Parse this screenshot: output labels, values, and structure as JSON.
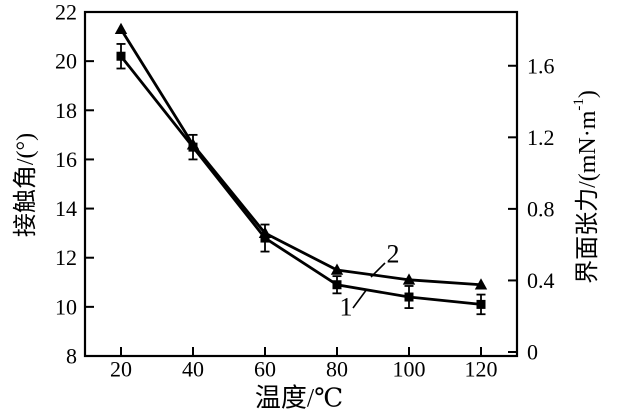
{
  "colors": {
    "foreground": "#000000",
    "background": "#ffffff"
  },
  "chart_data": {
    "type": "line",
    "title": "",
    "xlabel": "温度/℃",
    "ylabel_left": "接触角/(°)",
    "ylabel_right": "界面张力/(mN·m⁻¹)",
    "x": [
      20,
      40,
      60,
      80,
      100,
      120
    ],
    "xlim": [
      10,
      130
    ],
    "ylim_left": [
      8,
      22
    ],
    "ylim_right": [
      0,
      1.88
    ],
    "x_ticks": [
      20,
      40,
      60,
      80,
      100,
      120
    ],
    "y_ticks_left": [
      8,
      10,
      12,
      14,
      16,
      18,
      20,
      22
    ],
    "y_ticks_right": [
      0,
      0.4,
      0.8,
      1.2,
      1.6
    ],
    "grid": false,
    "legend_style": "inline numeric labels with leader lines",
    "series": [
      {
        "name": "1",
        "marker": "filled-square",
        "axis": "left",
        "values": [
          20.2,
          16.5,
          12.8,
          10.9,
          10.4,
          10.1
        ],
        "y_errors": [
          0.5,
          0.5,
          0.55,
          0.35,
          0.45,
          0.4
        ]
      },
      {
        "name": "2",
        "marker": "filled-triangle",
        "axis": "left",
        "values": [
          21.3,
          16.6,
          13.0,
          11.5,
          11.1,
          10.9
        ],
        "y_errors": [
          0,
          0,
          0,
          0,
          0,
          0
        ]
      }
    ]
  }
}
